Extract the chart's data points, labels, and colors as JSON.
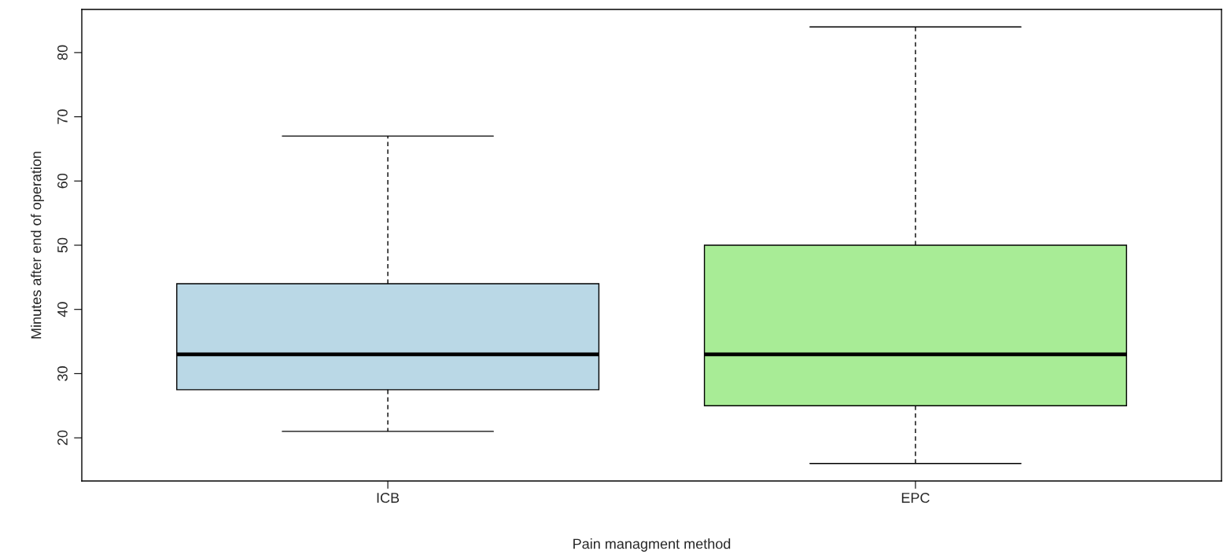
{
  "chart_data": {
    "type": "box",
    "xlabel": "Pain managment method",
    "ylabel": "Minutes after end of operation",
    "categories": [
      "ICB",
      "EPC"
    ],
    "boxes": [
      {
        "low": 21,
        "q1": 27.5,
        "median": 33,
        "q3": 44,
        "high": 67
      },
      {
        "low": 16,
        "q1": 25,
        "median": 33,
        "q3": 50,
        "high": 84
      }
    ],
    "colors": [
      "#bad8e6",
      "#a8ec96"
    ],
    "ylim": [
      13.28,
      86.72
    ],
    "yticks": [
      20,
      30,
      40,
      50,
      60,
      70,
      80
    ],
    "grid": false
  }
}
